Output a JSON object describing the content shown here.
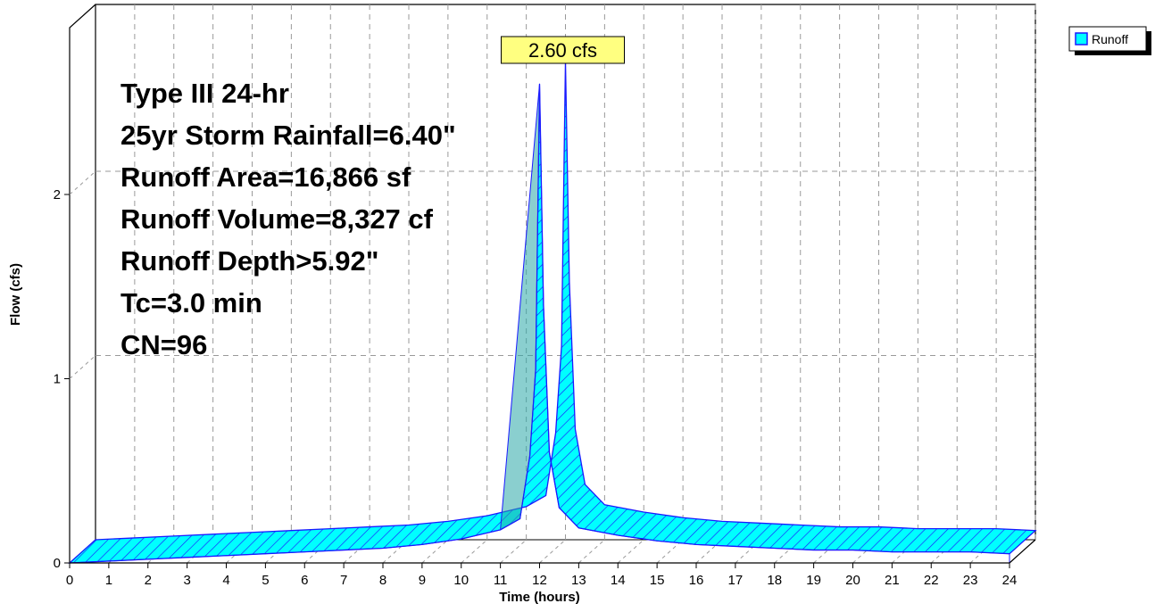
{
  "chart_data": {
    "type": "area",
    "xlabel": "Time  (hours)",
    "ylabel": "Flow  (cfs)",
    "xlim": [
      0,
      24
    ],
    "ylim": [
      0,
      2.6
    ],
    "x_ticks": [
      "0",
      "1",
      "2",
      "3",
      "4",
      "5",
      "6",
      "7",
      "8",
      "9",
      "10",
      "11",
      "12",
      "13",
      "14",
      "15",
      "16",
      "17",
      "18",
      "19",
      "20",
      "21",
      "22",
      "23",
      "24"
    ],
    "y_ticks": [
      "0",
      "1",
      "2"
    ],
    "grid": true,
    "legend_position": "top-right",
    "series": [
      {
        "name": "Runoff",
        "color": "#00FFFF",
        "x": [
          0,
          1,
          2,
          3,
          4,
          5,
          6,
          7,
          8,
          9,
          10,
          11,
          11.5,
          11.75,
          11.9,
          12.0,
          12.1,
          12.25,
          12.5,
          13,
          14,
          15,
          16,
          17,
          18,
          19,
          20,
          21,
          22,
          23,
          24
        ],
        "values": [
          0,
          0.01,
          0.02,
          0.03,
          0.04,
          0.05,
          0.06,
          0.07,
          0.08,
          0.1,
          0.13,
          0.18,
          0.24,
          0.58,
          1.05,
          2.6,
          1.4,
          0.6,
          0.3,
          0.19,
          0.15,
          0.12,
          0.1,
          0.09,
          0.08,
          0.07,
          0.07,
          0.06,
          0.06,
          0.06,
          0.05
        ]
      }
    ],
    "peak_label": "2.60 cfs",
    "info_lines": [
      "Type III 24-hr",
      "25yr Storm Rainfall=6.40\"",
      "Runoff Area=16,866 sf",
      "Runoff Volume=8,327 cf",
      "Runoff Depth>5.92\"",
      "Tc=3.0 min",
      "CN=96"
    ]
  }
}
